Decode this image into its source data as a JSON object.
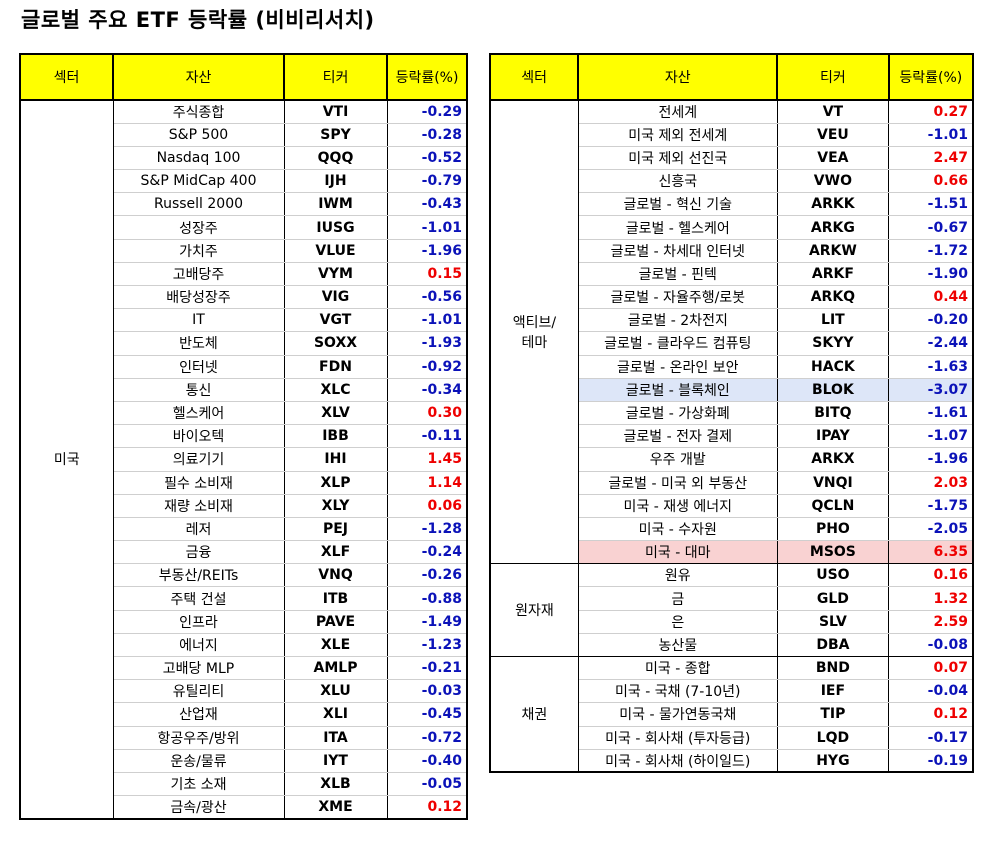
{
  "title": "글로벌 주요 ETF 등락률 (비비리서치)",
  "colors": {
    "header_bg": "#ffff00",
    "negative": "#0b12b8",
    "positive": "#ee0000",
    "highlight_blue": "#dde6f8",
    "highlight_red": "#f9d2d2"
  },
  "left": {
    "headers": {
      "sector": "섹터",
      "asset": "자산",
      "ticker": "티커",
      "change": "등락률(%)"
    },
    "groups": [
      {
        "sector": "미국",
        "rows": [
          {
            "asset": "주식종합",
            "ticker": "VTI",
            "change": "-0.29"
          },
          {
            "asset": "S&P 500",
            "ticker": "SPY",
            "change": "-0.28"
          },
          {
            "asset": "Nasdaq 100",
            "ticker": "QQQ",
            "change": "-0.52"
          },
          {
            "asset": "S&P MidCap 400",
            "ticker": "IJH",
            "change": "-0.79"
          },
          {
            "asset": "Russell 2000",
            "ticker": "IWM",
            "change": "-0.43"
          },
          {
            "asset": "성장주",
            "ticker": "IUSG",
            "change": "-1.01"
          },
          {
            "asset": "가치주",
            "ticker": "VLUE",
            "change": "-1.96"
          },
          {
            "asset": "고배당주",
            "ticker": "VYM",
            "change": "0.15"
          },
          {
            "asset": "배당성장주",
            "ticker": "VIG",
            "change": "-0.56"
          },
          {
            "asset": "IT",
            "ticker": "VGT",
            "change": "-1.01"
          },
          {
            "asset": "반도체",
            "ticker": "SOXX",
            "change": "-1.93"
          },
          {
            "asset": "인터넷",
            "ticker": "FDN",
            "change": "-0.92"
          },
          {
            "asset": "통신",
            "ticker": "XLC",
            "change": "-0.34"
          },
          {
            "asset": "헬스케어",
            "ticker": "XLV",
            "change": "0.30"
          },
          {
            "asset": "바이오텍",
            "ticker": "IBB",
            "change": "-0.11"
          },
          {
            "asset": "의료기기",
            "ticker": "IHI",
            "change": "1.45"
          },
          {
            "asset": "필수 소비재",
            "ticker": "XLP",
            "change": "1.14"
          },
          {
            "asset": "재량 소비재",
            "ticker": "XLY",
            "change": "0.06"
          },
          {
            "asset": "레저",
            "ticker": "PEJ",
            "change": "-1.28"
          },
          {
            "asset": "금융",
            "ticker": "XLF",
            "change": "-0.24"
          },
          {
            "asset": "부동산/REITs",
            "ticker": "VNQ",
            "change": "-0.26"
          },
          {
            "asset": "주택 건설",
            "ticker": "ITB",
            "change": "-0.88"
          },
          {
            "asset": "인프라",
            "ticker": "PAVE",
            "change": "-1.49"
          },
          {
            "asset": "에너지",
            "ticker": "XLE",
            "change": "-1.23"
          },
          {
            "asset": "고배당 MLP",
            "ticker": "AMLP",
            "change": "-0.21"
          },
          {
            "asset": "유틸리티",
            "ticker": "XLU",
            "change": "-0.03"
          },
          {
            "asset": "산업재",
            "ticker": "XLI",
            "change": "-0.45"
          },
          {
            "asset": "항공우주/방위",
            "ticker": "ITA",
            "change": "-0.72"
          },
          {
            "asset": "운송/물류",
            "ticker": "IYT",
            "change": "-0.40"
          },
          {
            "asset": "기초 소재",
            "ticker": "XLB",
            "change": "-0.05"
          },
          {
            "asset": "금속/광산",
            "ticker": "XME",
            "change": "0.12"
          }
        ]
      }
    ]
  },
  "right": {
    "headers": {
      "sector": "섹터",
      "asset": "자산",
      "ticker": "티커",
      "change": "등락률(%)"
    },
    "groups": [
      {
        "sector": "액티브/\n테마",
        "rows": [
          {
            "asset": "전세계",
            "ticker": "VT",
            "change": "0.27"
          },
          {
            "asset": "미국 제외 전세계",
            "ticker": "VEU",
            "change": "-1.01"
          },
          {
            "asset": "미국 제외 선진국",
            "ticker": "VEA",
            "change": "2.47"
          },
          {
            "asset": "신흥국",
            "ticker": "VWO",
            "change": "0.66"
          },
          {
            "asset": "글로벌 - 혁신 기술",
            "ticker": "ARKK",
            "change": "-1.51"
          },
          {
            "asset": "글로벌 - 헬스케어",
            "ticker": "ARKG",
            "change": "-0.67"
          },
          {
            "asset": "글로벌 - 차세대 인터넷",
            "ticker": "ARKW",
            "change": "-1.72"
          },
          {
            "asset": "글로벌 - 핀텍",
            "ticker": "ARKF",
            "change": "-1.90"
          },
          {
            "asset": "글로벌 - 자율주행/로봇",
            "ticker": "ARKQ",
            "change": "0.44"
          },
          {
            "asset": "글로벌 - 2차전지",
            "ticker": "LIT",
            "change": "-0.20"
          },
          {
            "asset": "글로벌 - 클라우드 컴퓨팅",
            "ticker": "SKYY",
            "change": "-2.44"
          },
          {
            "asset": "글로벌 - 온라인 보안",
            "ticker": "HACK",
            "change": "-1.63"
          },
          {
            "asset": "글로벌 - 블록체인",
            "ticker": "BLOK",
            "change": "-3.07",
            "highlight": "blue"
          },
          {
            "asset": "글로벌 - 가상화폐",
            "ticker": "BITQ",
            "change": "-1.61"
          },
          {
            "asset": "글로벌 - 전자 결제",
            "ticker": "IPAY",
            "change": "-1.07"
          },
          {
            "asset": "우주 개발",
            "ticker": "ARKX",
            "change": "-1.96"
          },
          {
            "asset": "글로벌 - 미국 외 부동산",
            "ticker": "VNQI",
            "change": "2.03"
          },
          {
            "asset": "미국 - 재생 에너지",
            "ticker": "QCLN",
            "change": "-1.75"
          },
          {
            "asset": "미국 - 수자원",
            "ticker": "PHO",
            "change": "-2.05"
          },
          {
            "asset": "미국 - 대마",
            "ticker": "MSOS",
            "change": "6.35",
            "highlight": "red"
          }
        ]
      },
      {
        "sector": "원자재",
        "rows": [
          {
            "asset": "원유",
            "ticker": "USO",
            "change": "0.16"
          },
          {
            "asset": "금",
            "ticker": "GLD",
            "change": "1.32"
          },
          {
            "asset": "은",
            "ticker": "SLV",
            "change": "2.59"
          },
          {
            "asset": "농산물",
            "ticker": "DBA",
            "change": "-0.08"
          }
        ]
      },
      {
        "sector": "채권",
        "rows": [
          {
            "asset": "미국 - 종합",
            "ticker": "BND",
            "change": "0.07"
          },
          {
            "asset": "미국 - 국채 (7-10년)",
            "ticker": "IEF",
            "change": "-0.04"
          },
          {
            "asset": "미국 - 물가연동국채",
            "ticker": "TIP",
            "change": "0.12"
          },
          {
            "asset": "미국 - 회사채 (투자등급)",
            "ticker": "LQD",
            "change": "-0.17"
          },
          {
            "asset": "미국 - 회사채 (하이일드)",
            "ticker": "HYG",
            "change": "-0.19"
          }
        ]
      }
    ]
  }
}
